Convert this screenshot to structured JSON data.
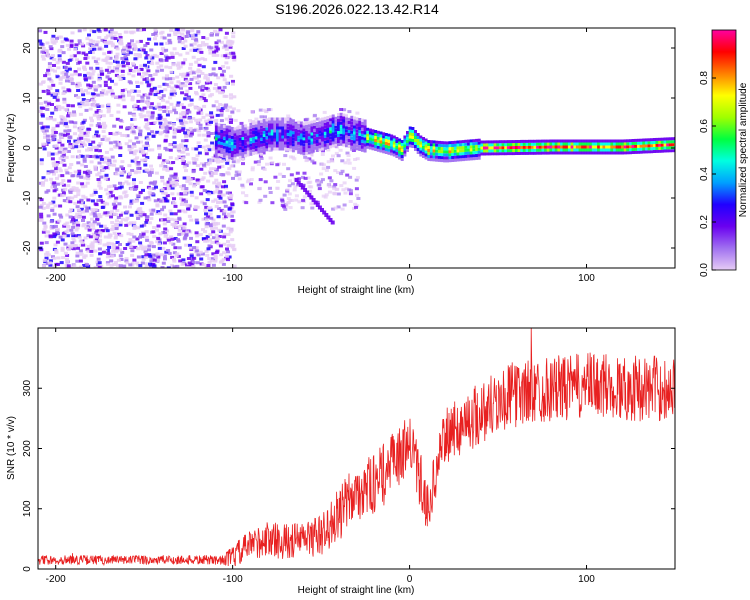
{
  "title": "S196.2026.022.13.42.R14",
  "chart_data": [
    {
      "type": "heatmap",
      "xlabel": "Height of straight line (km)",
      "ylabel": "Frequency (Hz)",
      "xlim": [
        -210,
        150
      ],
      "ylim": [
        -24,
        24
      ],
      "x_ticks": [
        -200,
        -100,
        0,
        100
      ],
      "y_ticks": [
        -20,
        -10,
        0,
        10,
        20
      ],
      "colorbar": {
        "label": "Normalized spectral amplitude",
        "range": [
          0,
          1
        ],
        "ticks": [
          "0.0",
          "0.2",
          "0.4",
          "0.6",
          "0.8"
        ],
        "colors": [
          "#e6ccf5",
          "#a070f0",
          "#6a00f0",
          "#2000ff",
          "#00a0ff",
          "#00ffe0",
          "#00ff40",
          "#a0ff00",
          "#ffff00",
          "#ff8000",
          "#ff0000",
          "#ff00a0"
        ]
      },
      "ridge": {
        "x": [
          -110,
          -100,
          -90,
          -80,
          -70,
          -60,
          -50,
          -40,
          -30,
          -20,
          -10,
          -5,
          0,
          5,
          10,
          20,
          40,
          60,
          80,
          100,
          120,
          150
        ],
        "y": [
          2,
          1,
          2,
          3,
          3,
          2,
          3,
          4,
          3,
          2,
          1,
          0,
          3,
          1,
          0,
          -0.3,
          0.3,
          0.4,
          0.5,
          0.5,
          0.5,
          1
        ]
      }
    },
    {
      "type": "line",
      "xlabel": "Height of straight line (km)",
      "ylabel": "SNR (10 * v/v)",
      "xlim": [
        -210,
        150
      ],
      "ylim": [
        0,
        400
      ],
      "x_ticks": [
        -200,
        -100,
        0,
        100
      ],
      "y_ticks": [
        0,
        100,
        200,
        300
      ],
      "series": [
        {
          "name": "SNR",
          "color": "#e82020",
          "x": [
            -210,
            -180,
            -150,
            -120,
            -105,
            -100,
            -90,
            -80,
            -70,
            -60,
            -50,
            -40,
            -30,
            -20,
            -10,
            0,
            10,
            20,
            30,
            40,
            50,
            60,
            70,
            80,
            90,
            100,
            110,
            120,
            130,
            140,
            150
          ],
          "y": [
            15,
            15,
            15,
            15,
            15,
            20,
            40,
            50,
            45,
            50,
            55,
            90,
            130,
            140,
            170,
            210,
            100,
            220,
            240,
            260,
            280,
            290,
            295,
            300,
            300,
            305,
            305,
            300,
            300,
            300,
            300
          ],
          "amplitude": [
            8,
            8,
            8,
            8,
            8,
            20,
            25,
            30,
            30,
            30,
            35,
            45,
            50,
            50,
            55,
            50,
            40,
            45,
            50,
            55,
            55,
            55,
            55,
            55,
            55,
            55,
            55,
            55,
            55,
            55,
            55
          ]
        }
      ]
    }
  ]
}
